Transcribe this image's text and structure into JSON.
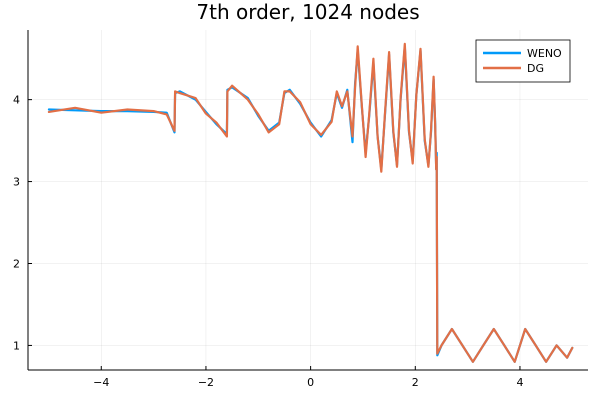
{
  "chart_data": {
    "type": "line",
    "title": "7th order, 1024 nodes",
    "xlabel": "",
    "ylabel": "",
    "xlim": [
      -5.4,
      5.3
    ],
    "ylim": [
      0.7,
      4.85
    ],
    "x_ticks": [
      -4,
      -2,
      0,
      2,
      4
    ],
    "y_ticks": [
      1,
      2,
      3,
      4
    ],
    "x_tick_labels": [
      "−4",
      "−2",
      "0",
      "2",
      "4"
    ],
    "y_tick_labels": [
      "1",
      "2",
      "3",
      "4"
    ],
    "grid": true,
    "legend_position": "top-right",
    "series": [
      {
        "name": "WENO",
        "color": "#009af9",
        "x": [
          -5.0,
          -4.5,
          -4.0,
          -3.5,
          -3.0,
          -2.75,
          -2.6,
          -2.59,
          -2.5,
          -2.2,
          -2.0,
          -1.8,
          -1.6,
          -1.59,
          -1.5,
          -1.2,
          -1.0,
          -0.8,
          -0.6,
          -0.5,
          -0.4,
          -0.2,
          0.0,
          0.2,
          0.4,
          0.5,
          0.6,
          0.7,
          0.8,
          0.85,
          0.9,
          0.98,
          1.05,
          1.12,
          1.2,
          1.28,
          1.35,
          1.42,
          1.5,
          1.58,
          1.65,
          1.72,
          1.8,
          1.88,
          1.95,
          2.02,
          2.1,
          2.18,
          2.25,
          2.3,
          2.35,
          2.38,
          2.4,
          2.41,
          2.42,
          2.5,
          2.7,
          2.9,
          3.1,
          3.3,
          3.5,
          3.7,
          3.9,
          4.1,
          4.3,
          4.5,
          4.7,
          4.9,
          5.0
        ],
        "y": [
          3.88,
          3.87,
          3.86,
          3.86,
          3.85,
          3.84,
          3.6,
          4.08,
          4.1,
          4.0,
          3.85,
          3.7,
          3.58,
          4.12,
          4.15,
          4.02,
          3.8,
          3.62,
          3.72,
          4.08,
          4.12,
          3.95,
          3.72,
          3.55,
          3.75,
          4.08,
          3.9,
          4.12,
          3.48,
          4.2,
          4.6,
          3.9,
          3.35,
          3.8,
          4.45,
          3.55,
          3.15,
          3.8,
          4.55,
          3.6,
          3.2,
          4.0,
          4.65,
          3.6,
          3.25,
          4.05,
          4.6,
          3.5,
          3.2,
          3.6,
          4.25,
          3.7,
          3.15,
          3.35,
          0.88,
          1.0,
          1.2,
          1.0,
          0.8,
          1.0,
          1.2,
          1.0,
          0.8,
          1.2,
          1.0,
          0.8,
          1.0,
          0.85,
          0.97
        ]
      },
      {
        "name": "DG",
        "color": "#e26f46",
        "x": [
          -5.0,
          -4.5,
          -4.0,
          -3.5,
          -3.0,
          -2.75,
          -2.6,
          -2.59,
          -2.5,
          -2.2,
          -2.0,
          -1.8,
          -1.6,
          -1.59,
          -1.5,
          -1.2,
          -1.0,
          -0.8,
          -0.6,
          -0.5,
          -0.4,
          -0.2,
          0.0,
          0.2,
          0.4,
          0.5,
          0.6,
          0.7,
          0.8,
          0.85,
          0.9,
          0.98,
          1.05,
          1.12,
          1.2,
          1.28,
          1.35,
          1.42,
          1.5,
          1.58,
          1.65,
          1.72,
          1.8,
          1.88,
          1.95,
          2.02,
          2.1,
          2.18,
          2.25,
          2.3,
          2.35,
          2.38,
          2.4,
          2.41,
          2.42,
          2.5,
          2.7,
          2.9,
          3.1,
          3.3,
          3.5,
          3.7,
          3.9,
          4.1,
          4.3,
          4.5,
          4.7,
          4.9,
          5.0
        ],
        "y": [
          3.85,
          3.9,
          3.84,
          3.88,
          3.86,
          3.82,
          3.62,
          4.1,
          4.08,
          4.02,
          3.83,
          3.72,
          3.55,
          4.1,
          4.17,
          4.0,
          3.82,
          3.6,
          3.7,
          4.1,
          4.1,
          3.97,
          3.7,
          3.57,
          3.73,
          4.1,
          3.92,
          4.1,
          3.55,
          4.15,
          4.65,
          3.92,
          3.3,
          3.82,
          4.5,
          3.55,
          3.12,
          3.82,
          4.58,
          3.62,
          3.18,
          4.02,
          4.68,
          3.62,
          3.22,
          4.05,
          4.62,
          3.52,
          3.18,
          3.62,
          4.28,
          3.68,
          3.15,
          3.3,
          0.9,
          1.0,
          1.2,
          1.0,
          0.8,
          1.0,
          1.2,
          1.0,
          0.8,
          1.2,
          1.0,
          0.8,
          1.0,
          0.85,
          0.97
        ]
      }
    ]
  }
}
